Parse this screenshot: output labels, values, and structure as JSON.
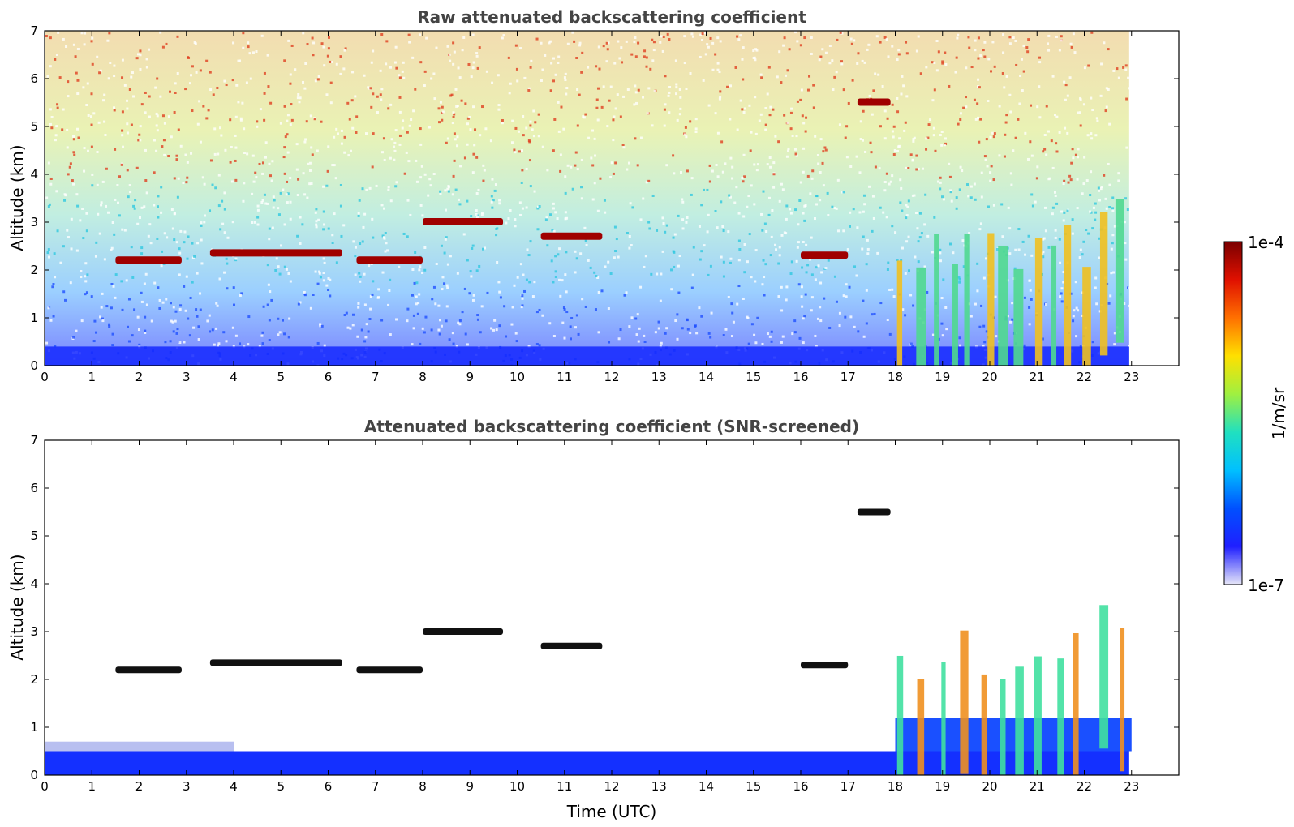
{
  "chart_data": [
    {
      "type": "heatmap",
      "title": "Raw attenuated backscattering coefficient",
      "xlabel": "",
      "ylabel": "Altitude (km)",
      "xlim": [
        0,
        24
      ],
      "ylim": [
        0,
        7
      ],
      "x_ticks": [
        "0",
        "1",
        "2",
        "3",
        "4",
        "5",
        "6",
        "7",
        "8",
        "9",
        "10",
        "11",
        "12",
        "13",
        "14",
        "15",
        "16",
        "17",
        "18",
        "19",
        "20",
        "21",
        "22",
        "23"
      ],
      "y_ticks": [
        "0",
        "1",
        "2",
        "3",
        "4",
        "5",
        "6",
        "7"
      ],
      "data_end_hour": 22.95,
      "grid": false,
      "layers": [
        {
          "feature": "cloud",
          "x_start": 1.5,
          "x_end": 2.9,
          "altitude": 2.2
        },
        {
          "feature": "cloud",
          "x_start": 3.5,
          "x_end": 6.3,
          "altitude": 2.35
        },
        {
          "feature": "cloud",
          "x_start": 6.6,
          "x_end": 8.0,
          "altitude": 2.2
        },
        {
          "feature": "cloud",
          "x_start": 8.0,
          "x_end": 9.7,
          "altitude": 3.0
        },
        {
          "feature": "cloud",
          "x_start": 10.5,
          "x_end": 11.8,
          "altitude": 2.7
        },
        {
          "feature": "cloud",
          "x_start": 16.0,
          "x_end": 17.0,
          "altitude": 2.3
        },
        {
          "feature": "cloud",
          "x_start": 17.2,
          "x_end": 17.9,
          "altitude": 5.5
        },
        {
          "feature": "precipitation",
          "x_start": 18.0,
          "x_end": 23.0,
          "altitude": 2.0
        }
      ]
    },
    {
      "type": "heatmap",
      "title": "Attenuated backscattering coefficient (SNR-screened)",
      "xlabel": "Time (UTC)",
      "ylabel": "Altitude (km)",
      "xlim": [
        0,
        24
      ],
      "ylim": [
        0,
        7
      ],
      "x_ticks": [
        "0",
        "1",
        "2",
        "3",
        "4",
        "5",
        "6",
        "7",
        "8",
        "9",
        "10",
        "11",
        "12",
        "13",
        "14",
        "15",
        "16",
        "17",
        "18",
        "19",
        "20",
        "21",
        "22",
        "23"
      ],
      "y_ticks": [
        "0",
        "1",
        "2",
        "3",
        "4",
        "5",
        "6",
        "7"
      ],
      "data_end_hour": 22.95,
      "grid": false
    }
  ],
  "colorbar": {
    "label": "1/m/sr",
    "max_label": "1e-4",
    "min_label": "1e-7",
    "scale": "log",
    "colormap": "jet",
    "colors": [
      "#e6e6f8",
      "#1f1fff",
      "#0050ff",
      "#00c0ff",
      "#20e0c0",
      "#a0f040",
      "#ffe000",
      "#ff7000",
      "#e01000",
      "#7a0000"
    ]
  }
}
